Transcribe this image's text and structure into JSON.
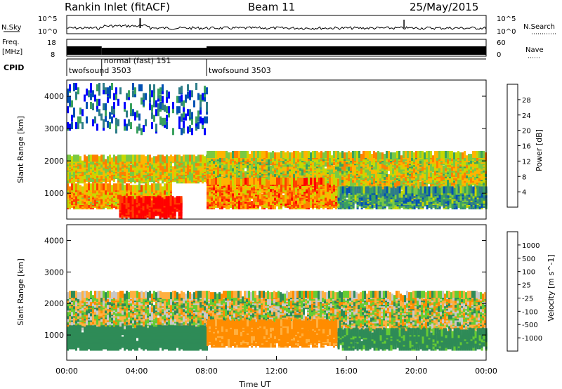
{
  "header": {
    "station": "Rankin Inlet (fitACF)",
    "beam": "Beam 11",
    "date": "25/May/2015"
  },
  "noise_panel": {
    "left_label": "N.Sky",
    "right_label": "N.Search",
    "y_ticks": [
      "10^5",
      "10^0"
    ],
    "y_ticks_right": [
      "10^5",
      "10^0"
    ]
  },
  "freq_panel": {
    "left_label_1": "Freq.",
    "left_label_2": "[MHz]",
    "left_ticks": [
      "18",
      "8"
    ],
    "right_label": "Nave",
    "right_ticks": [
      "60",
      "0"
    ]
  },
  "cpid_panel": {
    "label": "CPID",
    "segments": [
      {
        "name": "twofsound 3503",
        "start": 0.0,
        "end": 2.0
      },
      {
        "name": "normal (fast) 151",
        "start": 2.0,
        "end": 8.0
      },
      {
        "name": "twofsound 3503",
        "start": 8.0,
        "end": 24.0
      }
    ]
  },
  "colors": {
    "power_scale": [
      "#0000ff",
      "#0050b4",
      "#2e7d88",
      "#3aa15e",
      "#7ac943",
      "#c8d800",
      "#ffb400",
      "#ff8000",
      "#ff4000",
      "#ff0000"
    ],
    "velocity_scale": [
      "#ff0000",
      "#ff4000",
      "#ff8c00",
      "#ffb040",
      "#c8c8c8",
      "#c8c8c8",
      "#66cc33",
      "#2e8b57",
      "#1a6ba0",
      "#0033cc"
    ]
  },
  "chart_data": [
    {
      "type": "heatmap",
      "parameter": "Power",
      "ylabel": "Slant Range [km]",
      "xlim": [
        0,
        24
      ],
      "ylim": [
        200,
        4500
      ],
      "y_ticks": [
        1000,
        2000,
        3000,
        4000
      ],
      "colorbar": {
        "label": "Power [dB]",
        "ticks": [
          "28",
          "24",
          "20",
          "16",
          "12",
          "8",
          "4"
        ],
        "range": [
          0,
          30
        ]
      },
      "bands": [
        {
          "t0": 0.0,
          "t1": 8.0,
          "r0": 1300,
          "r1": 2000,
          "value": 18
        },
        {
          "t0": 8.0,
          "t1": 24.0,
          "r0": 1100,
          "r1": 2100,
          "value": 17
        },
        {
          "t0": 0.0,
          "t1": 6.0,
          "r0": 500,
          "r1": 1100,
          "value": 20
        },
        {
          "t0": 3.0,
          "t1": 6.5,
          "r0": 200,
          "r1": 700,
          "value": 30
        },
        {
          "t0": 8.0,
          "t1": 15.5,
          "r0": 500,
          "r1": 1300,
          "value": 22
        },
        {
          "t0": 15.5,
          "t1": 24.0,
          "r0": 500,
          "r1": 1000,
          "value": 10
        },
        {
          "t0": 0.0,
          "t1": 8.0,
          "r0": 2800,
          "r1": 4200,
          "value": 6
        }
      ]
    },
    {
      "type": "heatmap",
      "parameter": "Velocity",
      "ylabel": "Slant Range [km]",
      "xlabel": "Time UT",
      "xlim": [
        0,
        24
      ],
      "ylim": [
        200,
        4500
      ],
      "y_ticks": [
        1000,
        2000,
        3000,
        4000
      ],
      "x_ticks": [
        "00:00",
        "04:00",
        "08:00",
        "12:00",
        "16:00",
        "20:00",
        "00:00"
      ],
      "colorbar": {
        "label": "Velocity [m s^-1]",
        "ticks": [
          "1000",
          "500",
          "100",
          "25",
          "-25",
          "-100",
          "-500",
          "-1000"
        ],
        "range": [
          -1000,
          1000
        ]
      },
      "bands": [
        {
          "t0": 0.0,
          "t1": 24.0,
          "r0": 1100,
          "r1": 2200,
          "value": 0
        },
        {
          "t0": 0.0,
          "t1": 8.0,
          "r0": 500,
          "r1": 1100,
          "value": 300
        },
        {
          "t0": 8.0,
          "t1": 15.5,
          "r0": 600,
          "r1": 1300,
          "value": -200
        },
        {
          "t0": 15.5,
          "t1": 24.0,
          "r0": 500,
          "r1": 1000,
          "value": 200
        }
      ]
    }
  ]
}
